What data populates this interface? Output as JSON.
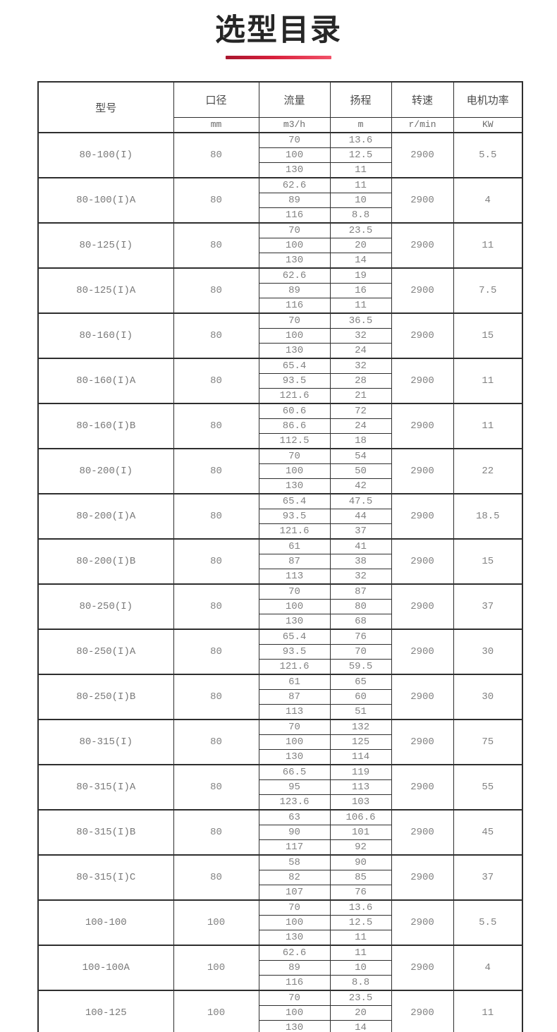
{
  "page": {
    "title": "选型目录",
    "accent_gradient_start": "#a8162e",
    "accent_gradient_end": "#f25269",
    "border_color": "#2e2e2e"
  },
  "table": {
    "headers": {
      "model": "型号",
      "diameter": "口径",
      "flow": "流量",
      "head": "扬程",
      "speed": "转速",
      "power": "电机功率"
    },
    "units": {
      "diameter": "mm",
      "flow": "m3/h",
      "head": "m",
      "speed": "r/min",
      "power": "KW"
    },
    "rows": [
      {
        "model": "80-100(I)",
        "diameter": "80",
        "points": [
          {
            "flow": "70",
            "head": "13.6"
          },
          {
            "flow": "100",
            "head": "12.5"
          },
          {
            "flow": "130",
            "head": "11"
          }
        ],
        "speed": "2900",
        "power": "5.5"
      },
      {
        "model": "80-100(I)A",
        "diameter": "80",
        "points": [
          {
            "flow": "62.6",
            "head": "11"
          },
          {
            "flow": "89",
            "head": "10"
          },
          {
            "flow": "116",
            "head": "8.8"
          }
        ],
        "speed": "2900",
        "power": "4"
      },
      {
        "model": "80-125(I)",
        "diameter": "80",
        "points": [
          {
            "flow": "70",
            "head": "23.5"
          },
          {
            "flow": "100",
            "head": "20"
          },
          {
            "flow": "130",
            "head": "14"
          }
        ],
        "speed": "2900",
        "power": "11"
      },
      {
        "model": "80-125(I)A",
        "diameter": "80",
        "points": [
          {
            "flow": "62.6",
            "head": "19"
          },
          {
            "flow": "89",
            "head": "16"
          },
          {
            "flow": "116",
            "head": "11"
          }
        ],
        "speed": "2900",
        "power": "7.5"
      },
      {
        "model": "80-160(I)",
        "diameter": "80",
        "points": [
          {
            "flow": "70",
            "head": "36.5"
          },
          {
            "flow": "100",
            "head": "32"
          },
          {
            "flow": "130",
            "head": "24"
          }
        ],
        "speed": "2900",
        "power": "15"
      },
      {
        "model": "80-160(I)A",
        "diameter": "80",
        "points": [
          {
            "flow": "65.4",
            "head": "32"
          },
          {
            "flow": "93.5",
            "head": "28"
          },
          {
            "flow": "121.6",
            "head": "21"
          }
        ],
        "speed": "2900",
        "power": "11"
      },
      {
        "model": "80-160(I)B",
        "diameter": "80",
        "points": [
          {
            "flow": "60.6",
            "head": "72"
          },
          {
            "flow": "86.6",
            "head": "24"
          },
          {
            "flow": "112.5",
            "head": "18"
          }
        ],
        "speed": "2900",
        "power": "11"
      },
      {
        "model": "80-200(I)",
        "diameter": "80",
        "points": [
          {
            "flow": "70",
            "head": "54"
          },
          {
            "flow": "100",
            "head": "50"
          },
          {
            "flow": "130",
            "head": "42"
          }
        ],
        "speed": "2900",
        "power": "22"
      },
      {
        "model": "80-200(I)A",
        "diameter": "80",
        "points": [
          {
            "flow": "65.4",
            "head": "47.5"
          },
          {
            "flow": "93.5",
            "head": "44"
          },
          {
            "flow": "121.6",
            "head": "37"
          }
        ],
        "speed": "2900",
        "power": "18.5"
      },
      {
        "model": "80-200(I)B",
        "diameter": "80",
        "points": [
          {
            "flow": "61",
            "head": "41"
          },
          {
            "flow": "87",
            "head": "38"
          },
          {
            "flow": "113",
            "head": "32"
          }
        ],
        "speed": "2900",
        "power": "15"
      },
      {
        "model": "80-250(I)",
        "diameter": "80",
        "points": [
          {
            "flow": "70",
            "head": "87"
          },
          {
            "flow": "100",
            "head": "80"
          },
          {
            "flow": "130",
            "head": "68"
          }
        ],
        "speed": "2900",
        "power": "37"
      },
      {
        "model": "80-250(I)A",
        "diameter": "80",
        "points": [
          {
            "flow": "65.4",
            "head": "76"
          },
          {
            "flow": "93.5",
            "head": "70"
          },
          {
            "flow": "121.6",
            "head": "59.5"
          }
        ],
        "speed": "2900",
        "power": "30"
      },
      {
        "model": "80-250(I)B",
        "diameter": "80",
        "points": [
          {
            "flow": "61",
            "head": "65"
          },
          {
            "flow": "87",
            "head": "60"
          },
          {
            "flow": "113",
            "head": "51"
          }
        ],
        "speed": "2900",
        "power": "30"
      },
      {
        "model": "80-315(I)",
        "diameter": "80",
        "points": [
          {
            "flow": "70",
            "head": "132"
          },
          {
            "flow": "100",
            "head": "125"
          },
          {
            "flow": "130",
            "head": "114"
          }
        ],
        "speed": "2900",
        "power": "75"
      },
      {
        "model": "80-315(I)A",
        "diameter": "80",
        "points": [
          {
            "flow": "66.5",
            "head": "119"
          },
          {
            "flow": "95",
            "head": "113"
          },
          {
            "flow": "123.6",
            "head": "103"
          }
        ],
        "speed": "2900",
        "power": "55"
      },
      {
        "model": "80-315(I)B",
        "diameter": "80",
        "points": [
          {
            "flow": "63",
            "head": "106.6"
          },
          {
            "flow": "90",
            "head": "101"
          },
          {
            "flow": "117",
            "head": "92"
          }
        ],
        "speed": "2900",
        "power": "45"
      },
      {
        "model": "80-315(I)C",
        "diameter": "80",
        "points": [
          {
            "flow": "58",
            "head": "90"
          },
          {
            "flow": "82",
            "head": "85"
          },
          {
            "flow": "107",
            "head": "76"
          }
        ],
        "speed": "2900",
        "power": "37"
      },
      {
        "model": "100-100",
        "diameter": "100",
        "points": [
          {
            "flow": "70",
            "head": "13.6"
          },
          {
            "flow": "100",
            "head": "12.5"
          },
          {
            "flow": "130",
            "head": "11"
          }
        ],
        "speed": "2900",
        "power": "5.5"
      },
      {
        "model": "100-100A",
        "diameter": "100",
        "points": [
          {
            "flow": "62.6",
            "head": "11"
          },
          {
            "flow": "89",
            "head": "10"
          },
          {
            "flow": "116",
            "head": "8.8"
          }
        ],
        "speed": "2900",
        "power": "4"
      },
      {
        "model": "100-125",
        "diameter": "100",
        "points": [
          {
            "flow": "70",
            "head": "23.5"
          },
          {
            "flow": "100",
            "head": "20"
          },
          {
            "flow": "130",
            "head": "14"
          }
        ],
        "speed": "2900",
        "power": "11"
      }
    ]
  }
}
